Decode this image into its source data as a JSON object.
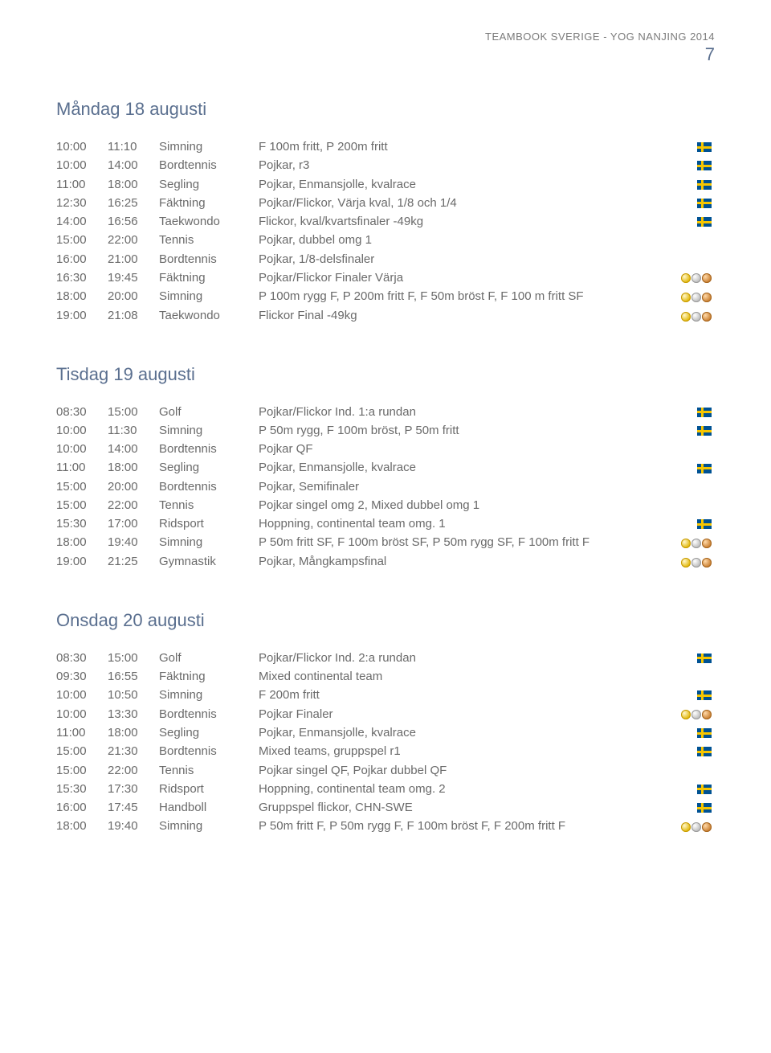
{
  "header": "TEAMBOOK SVERIGE - YOG NANJING 2014",
  "page_number": "7",
  "colors": {
    "heading": "#5a6f8f",
    "text": "#6a6a6a"
  },
  "days": [
    {
      "title": "Måndag 18 augusti",
      "rows": [
        {
          "start": "10:00",
          "end": "11:10",
          "sport": "Simning",
          "event": "F 100m fritt, P 200m fritt",
          "icon": "flag"
        },
        {
          "start": "10:00",
          "end": "14:00",
          "sport": "Bordtennis",
          "event": "Pojkar, r3",
          "icon": "flag"
        },
        {
          "start": "11:00",
          "end": "18:00",
          "sport": "Segling",
          "event": "Pojkar, Enmansjolle, kvalrace",
          "icon": "flag"
        },
        {
          "start": "12:30",
          "end": "16:25",
          "sport": "Fäktning",
          "event": "Pojkar/Flickor, Värja kval, 1/8 och 1/4",
          "icon": "flag"
        },
        {
          "start": "14:00",
          "end": "16:56",
          "sport": "Taekwondo",
          "event": "Flickor, kval/kvartsfinaler -49kg",
          "icon": "flag"
        },
        {
          "start": "15:00",
          "end": "22:00",
          "sport": "Tennis",
          "event": "Pojkar, dubbel omg 1",
          "icon": ""
        },
        {
          "start": "16:00",
          "end": "21:00",
          "sport": "Bordtennis",
          "event": "Pojkar, 1/8-delsfinaler",
          "icon": ""
        },
        {
          "start": "16:30",
          "end": "19:45",
          "sport": "Fäktning",
          "event": "Pojkar/Flickor Finaler Värja",
          "icon": "medals"
        },
        {
          "start": "18:00",
          "end": "20:00",
          "sport": "Simning",
          "event": "P 100m rygg F, P 200m fritt F, F 50m bröst F, F 100 m fritt SF",
          "icon": "medals"
        },
        {
          "start": "19:00",
          "end": "21:08",
          "sport": "Taekwondo",
          "event": "Flickor Final -49kg",
          "icon": "medals"
        }
      ]
    },
    {
      "title": "Tisdag 19 augusti",
      "rows": [
        {
          "start": "08:30",
          "end": "15:00",
          "sport": "Golf",
          "event": "Pojkar/Flickor Ind. 1:a rundan",
          "icon": "flag"
        },
        {
          "start": "10:00",
          "end": "11:30",
          "sport": "Simning",
          "event": "P 50m rygg, F 100m bröst, P 50m fritt",
          "icon": "flag"
        },
        {
          "start": "10:00",
          "end": "14:00",
          "sport": "Bordtennis",
          "event": "Pojkar QF",
          "icon": ""
        },
        {
          "start": "11:00",
          "end": "18:00",
          "sport": "Segling",
          "event": "Pojkar, Enmansjolle, kvalrace",
          "icon": "flag"
        },
        {
          "start": "15:00",
          "end": "20:00",
          "sport": "Bordtennis",
          "event": "Pojkar, Semifinaler",
          "icon": ""
        },
        {
          "start": "15:00",
          "end": "22:00",
          "sport": "Tennis",
          "event": "Pojkar singel omg 2, Mixed dubbel omg 1",
          "icon": ""
        },
        {
          "start": "15:30",
          "end": "17:00",
          "sport": "Ridsport",
          "event": "Hoppning, continental team omg. 1",
          "icon": "flag"
        },
        {
          "start": "18:00",
          "end": "19:40",
          "sport": "Simning",
          "event": "P 50m fritt SF, F 100m bröst SF, P 50m rygg SF, F 100m fritt F",
          "icon": "medals"
        },
        {
          "start": "19:00",
          "end": "21:25",
          "sport": "Gymnastik",
          "event": "Pojkar, Mångkampsfinal",
          "icon": "medals"
        }
      ]
    },
    {
      "title": "Onsdag 20 augusti",
      "rows": [
        {
          "start": "08:30",
          "end": "15:00",
          "sport": "Golf",
          "event": "Pojkar/Flickor Ind. 2:a rundan",
          "icon": "flag"
        },
        {
          "start": "09:30",
          "end": "16:55",
          "sport": "Fäktning",
          "event": "Mixed continental team",
          "icon": ""
        },
        {
          "start": "10:00",
          "end": "10:50",
          "sport": "Simning",
          "event": "F 200m fritt",
          "icon": "flag"
        },
        {
          "start": "10:00",
          "end": "13:30",
          "sport": "Bordtennis",
          "event": "Pojkar Finaler",
          "icon": "medals"
        },
        {
          "start": "11:00",
          "end": "18:00",
          "sport": "Segling",
          "event": "Pojkar, Enmansjolle, kvalrace",
          "icon": "flag"
        },
        {
          "start": "15:00",
          "end": "21:30",
          "sport": "Bordtennis",
          "event": "Mixed teams, gruppspel r1",
          "icon": "flag"
        },
        {
          "start": "15:00",
          "end": "22:00",
          "sport": "Tennis",
          "event": "Pojkar singel QF, Pojkar dubbel QF",
          "icon": ""
        },
        {
          "start": "15:30",
          "end": "17:30",
          "sport": "Ridsport",
          "event": "Hoppning, continental team omg. 2",
          "icon": "flag"
        },
        {
          "start": "16:00",
          "end": "17:45",
          "sport": "Handboll",
          "event": "Gruppspel flickor, CHN-SWE",
          "icon": "flag"
        },
        {
          "start": "18:00",
          "end": "19:40",
          "sport": "Simning",
          "event": "P 50m fritt F, P 50m rygg F, F 100m bröst F, F 200m fritt F",
          "icon": "medals"
        }
      ]
    }
  ]
}
